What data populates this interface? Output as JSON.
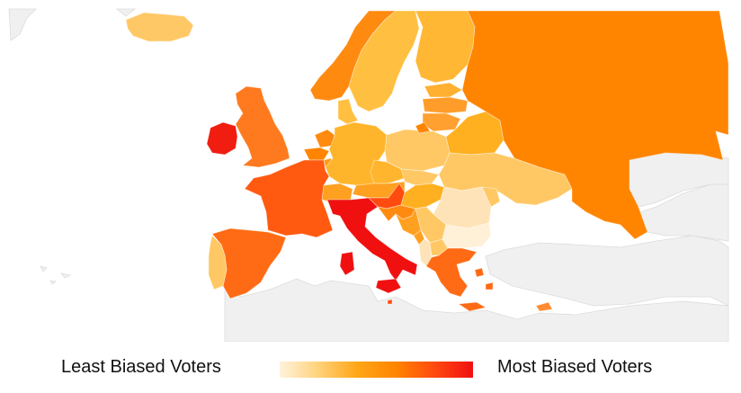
{
  "legend": {
    "low_label": "Least Biased Voters",
    "high_label": "Most Biased Voters",
    "gradient_stops": [
      "#fff3dc",
      "#ffd27a",
      "#ffa617",
      "#ff8500",
      "#ff4a10",
      "#f01010"
    ]
  },
  "colors": {
    "no_data_land": "#f0f0f0",
    "sea": "#ffffff",
    "border": "#ffffff"
  },
  "countries": [
    {
      "id": "iceland",
      "color": "#ffc866",
      "bias": 0.25
    },
    {
      "id": "ireland",
      "color": "#f01d10",
      "bias": 0.97
    },
    {
      "id": "united-kingdom",
      "color": "#ff7a1e",
      "bias": 0.7
    },
    {
      "id": "norway",
      "color": "#ff8a10",
      "bias": 0.65
    },
    {
      "id": "sweden",
      "color": "#ffbf40",
      "bias": 0.35
    },
    {
      "id": "finland",
      "color": "#ffb734",
      "bias": 0.4
    },
    {
      "id": "estonia",
      "color": "#ffb030",
      "bias": 0.42
    },
    {
      "id": "latvia",
      "color": "#ff9c2a",
      "bias": 0.5
    },
    {
      "id": "lithuania",
      "color": "#ffa030",
      "bias": 0.48
    },
    {
      "id": "denmark",
      "color": "#ffbf40",
      "bias": 0.35
    },
    {
      "id": "netherlands",
      "color": "#ff8a10",
      "bias": 0.65
    },
    {
      "id": "belgium",
      "color": "#ff8500",
      "bias": 0.67
    },
    {
      "id": "luxembourg",
      "color": "#ff9a18",
      "bias": 0.58
    },
    {
      "id": "germany",
      "color": "#ffb52b",
      "bias": 0.42
    },
    {
      "id": "poland",
      "color": "#ffc864",
      "bias": 0.28
    },
    {
      "id": "belarus",
      "color": "#ffb020",
      "bias": 0.4
    },
    {
      "id": "czechia",
      "color": "#ffb52e",
      "bias": 0.41
    },
    {
      "id": "slovakia",
      "color": "#ffc864",
      "bias": 0.29
    },
    {
      "id": "austria",
      "color": "#ffa020",
      "bias": 0.5
    },
    {
      "id": "switzerland",
      "color": "#ffa020",
      "bias": 0.5
    },
    {
      "id": "france",
      "color": "#ff5a10",
      "bias": 0.84
    },
    {
      "id": "spain",
      "color": "#ff6b14",
      "bias": 0.78
    },
    {
      "id": "portugal",
      "color": "#ffc864",
      "bias": 0.3
    },
    {
      "id": "italy",
      "color": "#f01010",
      "bias": 1.0
    },
    {
      "id": "slovenia",
      "color": "#ff4a10",
      "bias": 0.88
    },
    {
      "id": "croatia",
      "color": "#ff8a10",
      "bias": 0.65
    },
    {
      "id": "hungary",
      "color": "#ffb020",
      "bias": 0.43
    },
    {
      "id": "ukraine",
      "color": "#ffc864",
      "bias": 0.3
    },
    {
      "id": "moldova",
      "color": "#ffc864",
      "bias": 0.3
    },
    {
      "id": "romania",
      "color": "#ffe3b8",
      "bias": 0.1
    },
    {
      "id": "serbia",
      "color": "#ffc864",
      "bias": 0.3
    },
    {
      "id": "bosnia",
      "color": "#ffa020",
      "bias": 0.5
    },
    {
      "id": "montenegro",
      "color": "#ffa020",
      "bias": 0.5
    },
    {
      "id": "albania",
      "color": "#ffe3b8",
      "bias": 0.1
    },
    {
      "id": "north-macedonia",
      "color": "#ffc864",
      "bias": 0.3
    },
    {
      "id": "bulgaria",
      "color": "#fff0d8",
      "bias": 0.05
    },
    {
      "id": "greece",
      "color": "#ff6a14",
      "bias": 0.79
    },
    {
      "id": "cyprus",
      "color": "#ff8a30",
      "bias": 0.62
    },
    {
      "id": "malta",
      "color": "#ff4a10",
      "bias": 0.88
    },
    {
      "id": "russia",
      "color": "#ff8500",
      "bias": 0.67
    }
  ]
}
